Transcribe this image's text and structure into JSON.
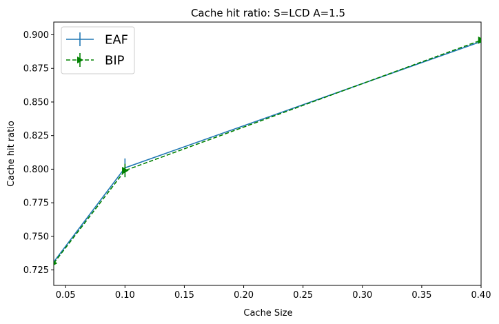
{
  "chart_data": {
    "type": "line",
    "title": "Cache hit ratio: S=LCD A=1.5",
    "xlabel": "Cache Size",
    "ylabel": "Cache hit ratio",
    "xlim": [
      0.04,
      0.4
    ],
    "ylim": [
      0.7135,
      0.9095
    ],
    "xticks": [
      0.05,
      0.1,
      0.15,
      0.2,
      0.25,
      0.3,
      0.35,
      0.4
    ],
    "xtick_labels": [
      "0.05",
      "0.10",
      "0.15",
      "0.20",
      "0.25",
      "0.30",
      "0.35",
      "0.40"
    ],
    "yticks": [
      0.725,
      0.75,
      0.775,
      0.8,
      0.825,
      0.85,
      0.875,
      0.9
    ],
    "ytick_labels": [
      "0.725",
      "0.750",
      "0.775",
      "0.800",
      "0.825",
      "0.850",
      "0.875",
      "0.900"
    ],
    "grid": false,
    "legend_position": "top-left",
    "series": [
      {
        "name": "EAF",
        "color": "#1f77b4",
        "linestyle": "solid",
        "marker": "none",
        "x": [
          0.04,
          0.1,
          0.4
        ],
        "y": [
          0.731,
          0.801,
          0.895
        ],
        "yerr": [
          0.0005,
          0.007,
          0.0015
        ]
      },
      {
        "name": "BIP",
        "color": "#008000",
        "linestyle": "dashed",
        "marker": "right-triangle",
        "x": [
          0.04,
          0.1,
          0.4
        ],
        "y": [
          0.73,
          0.799,
          0.896
        ],
        "yerr": [
          0.0005,
          0.005,
          0.002
        ]
      }
    ]
  }
}
